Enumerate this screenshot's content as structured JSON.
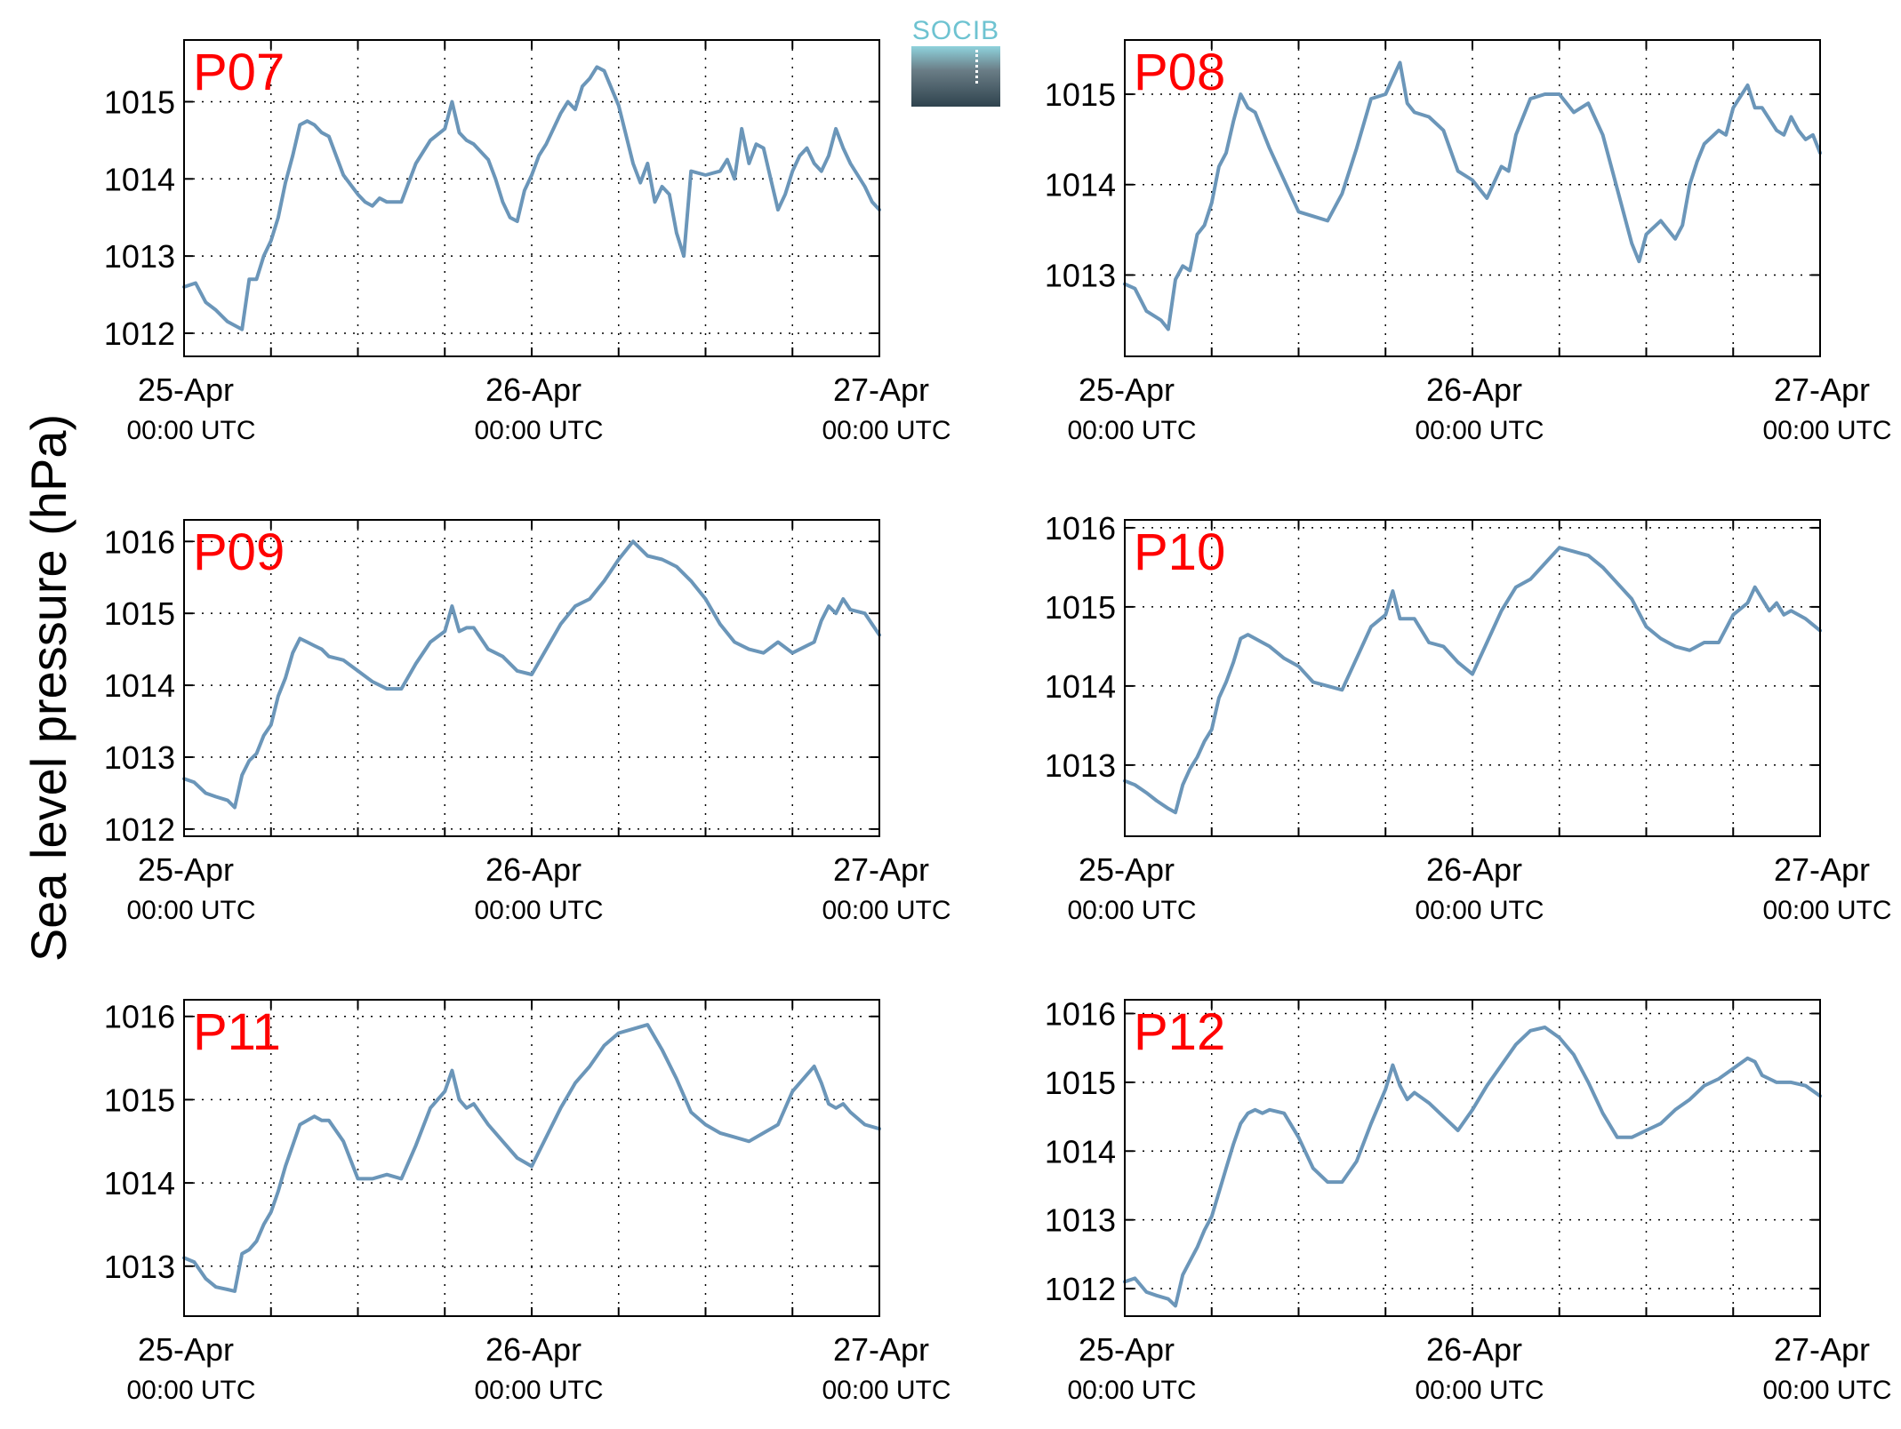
{
  "ylabel": "Sea level pressure (hPa)",
  "logo_text": "SOCIB",
  "colors": {
    "line": "#6b96b9",
    "label": "#ff0000",
    "axis": "#000000"
  },
  "chart_data": [
    {
      "type": "line",
      "title": "P07",
      "xlabel": "",
      "ylabel": "",
      "grid": true,
      "xlim": [
        0,
        48
      ],
      "ylim": [
        1011.7,
        1015.8
      ],
      "yticks": [
        1012,
        1013,
        1014,
        1015
      ],
      "x_tick_labels": [
        {
          "x": 0,
          "date": "25-Apr",
          "time": "00:00 UTC"
        },
        {
          "x": 24,
          "date": "26-Apr",
          "time": "00:00 UTC"
        },
        {
          "x": 48,
          "date": "27-Apr",
          "time": "00:00 UTC"
        }
      ],
      "series": [
        {
          "x": [
            0,
            0.8,
            1.5,
            2.2,
            3,
            3.5,
            4,
            4.5,
            5,
            5.5,
            6,
            6.5,
            7,
            7.5,
            8,
            8.5,
            9,
            9.5,
            10,
            11,
            12,
            12.5,
            13,
            13.5,
            14,
            15,
            16,
            17,
            18,
            18.5,
            19,
            19.5,
            20,
            21,
            21.5,
            22,
            22.5,
            23,
            23.5,
            24,
            24.5,
            25,
            26,
            26.5,
            27,
            27.5,
            28,
            28.5,
            29,
            30,
            31,
            31.5,
            32,
            32.5,
            33,
            33.5,
            34,
            34.5,
            35,
            36,
            37,
            37.5,
            38,
            38.5,
            39,
            39.5,
            40,
            40.5,
            41,
            41.5,
            42,
            42.5,
            43,
            43.5,
            44,
            44.5,
            45,
            45.5,
            46,
            46.5,
            47,
            47.5,
            48
          ],
          "y": [
            1012.6,
            1012.65,
            1012.4,
            1012.3,
            1012.15,
            1012.1,
            1012.05,
            1012.7,
            1012.7,
            1013.0,
            1013.2,
            1013.5,
            1013.95,
            1014.3,
            1014.7,
            1014.75,
            1014.7,
            1014.6,
            1014.55,
            1014.05,
            1013.8,
            1013.7,
            1013.65,
            1013.75,
            1013.7,
            1013.7,
            1014.2,
            1014.5,
            1014.65,
            1015.0,
            1014.6,
            1014.5,
            1014.45,
            1014.25,
            1014.0,
            1013.7,
            1013.5,
            1013.45,
            1013.85,
            1014.05,
            1014.3,
            1014.45,
            1014.85,
            1015.0,
            1014.9,
            1015.2,
            1015.3,
            1015.45,
            1015.4,
            1014.95,
            1014.2,
            1013.95,
            1014.2,
            1013.7,
            1013.9,
            1013.8,
            1013.3,
            1013.0,
            1014.1,
            1014.05,
            1014.1,
            1014.25,
            1014.0,
            1014.65,
            1014.2,
            1014.45,
            1014.4,
            1014.0,
            1013.6,
            1013.8,
            1014.1,
            1014.3,
            1014.4,
            1014.2,
            1014.1,
            1014.3,
            1014.65,
            1014.4,
            1014.2,
            1014.05,
            1013.9,
            1013.7,
            1013.6
          ]
        }
      ]
    },
    {
      "type": "line",
      "title": "P08",
      "xlabel": "",
      "ylabel": "",
      "grid": true,
      "xlim": [
        0,
        48
      ],
      "ylim": [
        1012.1,
        1015.6
      ],
      "yticks": [
        1013,
        1014,
        1015
      ],
      "x_tick_labels": [
        {
          "x": 0,
          "date": "25-Apr",
          "time": "00:00 UTC"
        },
        {
          "x": 24,
          "date": "26-Apr",
          "time": "00:00 UTC"
        },
        {
          "x": 48,
          "date": "27-Apr",
          "time": "00:00 UTC"
        }
      ],
      "series": [
        {
          "x": [
            0,
            0.7,
            1.5,
            2,
            2.5,
            3,
            3.5,
            4,
            4.5,
            5,
            5.5,
            6,
            6.5,
            7,
            7.5,
            8,
            8.5,
            9,
            10,
            11,
            12,
            13,
            14,
            15,
            16,
            17,
            18,
            19,
            19.5,
            20,
            21,
            22,
            23,
            24,
            25,
            26,
            26.5,
            27,
            28,
            29,
            30,
            31,
            32,
            33,
            34,
            35,
            35.5,
            36,
            37,
            38,
            38.5,
            39,
            39.5,
            40,
            41,
            41.5,
            42,
            43,
            43.5,
            44,
            45,
            45.5,
            46,
            46.5,
            47,
            47.5,
            48
          ],
          "y": [
            1012.9,
            1012.85,
            1012.6,
            1012.55,
            1012.5,
            1012.4,
            1012.95,
            1013.1,
            1013.05,
            1013.45,
            1013.55,
            1013.8,
            1014.2,
            1014.35,
            1014.7,
            1015.0,
            1014.85,
            1014.8,
            1014.4,
            1014.05,
            1013.7,
            1013.65,
            1013.6,
            1013.9,
            1014.4,
            1014.95,
            1015.0,
            1015.35,
            1014.9,
            1014.8,
            1014.75,
            1014.6,
            1014.15,
            1014.05,
            1013.85,
            1014.2,
            1014.15,
            1014.55,
            1014.95,
            1015.0,
            1015.0,
            1014.8,
            1014.9,
            1014.55,
            1013.95,
            1013.35,
            1013.15,
            1013.45,
            1013.6,
            1013.4,
            1013.55,
            1014.0,
            1014.25,
            1014.45,
            1014.6,
            1014.55,
            1014.85,
            1015.1,
            1014.85,
            1014.85,
            1014.6,
            1014.55,
            1014.75,
            1014.6,
            1014.5,
            1014.55,
            1014.35
          ]
        }
      ]
    },
    {
      "type": "line",
      "title": "P09",
      "xlabel": "",
      "ylabel": "",
      "grid": true,
      "xlim": [
        0,
        48
      ],
      "ylim": [
        1011.9,
        1016.3
      ],
      "yticks": [
        1012,
        1013,
        1014,
        1015,
        1016
      ],
      "x_tick_labels": [
        {
          "x": 0,
          "date": "25-Apr",
          "time": "00:00 UTC"
        },
        {
          "x": 24,
          "date": "26-Apr",
          "time": "00:00 UTC"
        },
        {
          "x": 48,
          "date": "27-Apr",
          "time": "00:00 UTC"
        }
      ],
      "series": [
        {
          "x": [
            0,
            0.7,
            1.5,
            2.2,
            3,
            3.5,
            4,
            4.5,
            5,
            5.5,
            6,
            6.5,
            7,
            7.5,
            8,
            8.5,
            9,
            9.5,
            10,
            11,
            12,
            13,
            14,
            15,
            16,
            17,
            18,
            18.5,
            19,
            19.5,
            20,
            21,
            22,
            23,
            24,
            25,
            26,
            27,
            28,
            29,
            30,
            31,
            32,
            33,
            33.5,
            34,
            35,
            36,
            37,
            38,
            39,
            40,
            41,
            42,
            43,
            43.5,
            44,
            44.5,
            45,
            45.5,
            46,
            47,
            48
          ],
          "y": [
            1012.7,
            1012.65,
            1012.5,
            1012.45,
            1012.4,
            1012.3,
            1012.75,
            1012.95,
            1013.05,
            1013.3,
            1013.45,
            1013.85,
            1014.1,
            1014.45,
            1014.65,
            1014.6,
            1014.55,
            1014.5,
            1014.4,
            1014.35,
            1014.2,
            1014.05,
            1013.95,
            1013.95,
            1014.3,
            1014.6,
            1014.75,
            1015.1,
            1014.75,
            1014.8,
            1014.8,
            1014.5,
            1014.4,
            1014.2,
            1014.15,
            1014.5,
            1014.85,
            1015.1,
            1015.2,
            1015.45,
            1015.75,
            1016.0,
            1015.8,
            1015.75,
            1015.7,
            1015.65,
            1015.45,
            1015.2,
            1014.85,
            1014.6,
            1014.5,
            1014.45,
            1014.6,
            1014.45,
            1014.55,
            1014.6,
            1014.9,
            1015.1,
            1015.0,
            1015.2,
            1015.05,
            1015.0,
            1014.7
          ]
        }
      ]
    },
    {
      "type": "line",
      "title": "P10",
      "xlabel": "",
      "ylabel": "",
      "grid": true,
      "xlim": [
        0,
        48
      ],
      "ylim": [
        1012.1,
        1016.1
      ],
      "yticks": [
        1013,
        1014,
        1015,
        1016
      ],
      "x_tick_labels": [
        {
          "x": 0,
          "date": "25-Apr",
          "time": "00:00 UTC"
        },
        {
          "x": 24,
          "date": "26-Apr",
          "time": "00:00 UTC"
        },
        {
          "x": 48,
          "date": "27-Apr",
          "time": "00:00 UTC"
        }
      ],
      "series": [
        {
          "x": [
            0,
            0.7,
            1.5,
            2.2,
            3,
            3.5,
            4,
            4.5,
            5,
            5.5,
            6,
            6.5,
            7,
            7.5,
            8,
            8.5,
            9,
            9.5,
            10,
            11,
            12,
            13,
            14,
            15,
            16,
            17,
            18,
            18.5,
            19,
            19.5,
            20,
            21,
            22,
            23,
            24,
            25,
            26,
            27,
            28,
            29,
            30,
            31,
            32,
            33,
            34,
            35,
            36,
            37,
            38,
            39,
            40,
            41,
            42,
            43,
            43.5,
            44,
            44.5,
            45,
            45.5,
            46,
            47,
            48
          ],
          "y": [
            1012.8,
            1012.75,
            1012.65,
            1012.55,
            1012.45,
            1012.4,
            1012.75,
            1012.95,
            1013.1,
            1013.3,
            1013.45,
            1013.85,
            1014.05,
            1014.3,
            1014.6,
            1014.65,
            1014.6,
            1014.55,
            1014.5,
            1014.35,
            1014.25,
            1014.05,
            1014.0,
            1013.95,
            1014.35,
            1014.75,
            1014.9,
            1015.2,
            1014.85,
            1014.85,
            1014.85,
            1014.55,
            1014.5,
            1014.3,
            1014.15,
            1014.55,
            1014.95,
            1015.25,
            1015.35,
            1015.55,
            1015.75,
            1015.7,
            1015.65,
            1015.5,
            1015.3,
            1015.1,
            1014.75,
            1014.6,
            1014.5,
            1014.45,
            1014.55,
            1014.55,
            1014.9,
            1015.05,
            1015.25,
            1015.1,
            1014.95,
            1015.05,
            1014.9,
            1014.95,
            1014.85,
            1014.7
          ]
        }
      ]
    },
    {
      "type": "line",
      "title": "P11",
      "xlabel": "",
      "ylabel": "",
      "grid": true,
      "xlim": [
        0,
        48
      ],
      "ylim": [
        1012.4,
        1016.2
      ],
      "yticks": [
        1013,
        1014,
        1015,
        1016
      ],
      "x_tick_labels": [
        {
          "x": 0,
          "date": "25-Apr",
          "time": "00:00 UTC"
        },
        {
          "x": 24,
          "date": "26-Apr",
          "time": "00:00 UTC"
        },
        {
          "x": 48,
          "date": "27-Apr",
          "time": "00:00 UTC"
        }
      ],
      "series": [
        {
          "x": [
            0,
            0.7,
            1.5,
            2.2,
            3,
            3.5,
            4,
            4.5,
            5,
            5.5,
            6,
            6.5,
            7,
            7.5,
            8,
            8.5,
            9,
            9.5,
            10,
            11,
            12,
            13,
            14,
            15,
            16,
            17,
            18,
            18.5,
            19,
            19.5,
            20,
            21,
            22,
            23,
            24,
            25,
            26,
            27,
            28,
            29,
            30,
            31,
            32,
            33,
            34,
            35,
            36,
            37,
            38,
            39,
            40,
            41,
            42,
            43,
            43.5,
            44,
            44.5,
            45,
            45.5,
            46,
            47,
            48
          ],
          "y": [
            1013.1,
            1013.05,
            1012.85,
            1012.75,
            1012.72,
            1012.7,
            1013.15,
            1013.2,
            1013.3,
            1013.5,
            1013.65,
            1013.9,
            1014.2,
            1014.45,
            1014.7,
            1014.75,
            1014.8,
            1014.75,
            1014.75,
            1014.5,
            1014.05,
            1014.05,
            1014.1,
            1014.05,
            1014.45,
            1014.9,
            1015.1,
            1015.35,
            1015.0,
            1014.9,
            1014.95,
            1014.7,
            1014.5,
            1014.3,
            1014.2,
            1014.55,
            1014.9,
            1015.2,
            1015.4,
            1015.65,
            1015.8,
            1015.85,
            1015.9,
            1015.6,
            1015.25,
            1014.85,
            1014.7,
            1014.6,
            1014.55,
            1014.5,
            1014.6,
            1014.7,
            1015.1,
            1015.3,
            1015.4,
            1015.2,
            1014.95,
            1014.9,
            1014.95,
            1014.85,
            1014.7,
            1014.65
          ]
        }
      ]
    },
    {
      "type": "line",
      "title": "P12",
      "xlabel": "",
      "ylabel": "",
      "grid": true,
      "xlim": [
        0,
        48
      ],
      "ylim": [
        1011.6,
        1016.2
      ],
      "yticks": [
        1012,
        1013,
        1014,
        1015,
        1016
      ],
      "x_tick_labels": [
        {
          "x": 0,
          "date": "25-Apr",
          "time": "00:00 UTC"
        },
        {
          "x": 24,
          "date": "26-Apr",
          "time": "00:00 UTC"
        },
        {
          "x": 48,
          "date": "27-Apr",
          "time": "00:00 UTC"
        }
      ],
      "series": [
        {
          "x": [
            0,
            0.7,
            1.5,
            2.2,
            3,
            3.5,
            4,
            4.5,
            5,
            5.5,
            6,
            6.5,
            7,
            7.5,
            8,
            8.5,
            9,
            9.5,
            10,
            11,
            12,
            13,
            14,
            15,
            16,
            17,
            18,
            18.5,
            19,
            19.5,
            20,
            21,
            22,
            23,
            24,
            25,
            26,
            27,
            28,
            29,
            30,
            31,
            32,
            33,
            34,
            35,
            36,
            37,
            38,
            39,
            40,
            41,
            42,
            43,
            43.5,
            44,
            44.5,
            45,
            45.5,
            46,
            47,
            48
          ],
          "y": [
            1012.1,
            1012.15,
            1011.95,
            1011.9,
            1011.85,
            1011.75,
            1012.2,
            1012.4,
            1012.6,
            1012.85,
            1013.05,
            1013.4,
            1013.75,
            1014.1,
            1014.4,
            1014.55,
            1014.6,
            1014.55,
            1014.6,
            1014.55,
            1014.2,
            1013.75,
            1013.55,
            1013.55,
            1013.85,
            1014.4,
            1014.9,
            1015.25,
            1014.95,
            1014.75,
            1014.85,
            1014.7,
            1014.5,
            1014.3,
            1014.6,
            1014.95,
            1015.25,
            1015.55,
            1015.75,
            1015.8,
            1015.65,
            1015.4,
            1015.0,
            1014.55,
            1014.2,
            1014.2,
            1014.3,
            1014.4,
            1014.6,
            1014.75,
            1014.95,
            1015.05,
            1015.2,
            1015.35,
            1015.3,
            1015.1,
            1015.05,
            1015.0,
            1015.0,
            1015.0,
            1014.95,
            1014.8
          ]
        }
      ]
    }
  ]
}
